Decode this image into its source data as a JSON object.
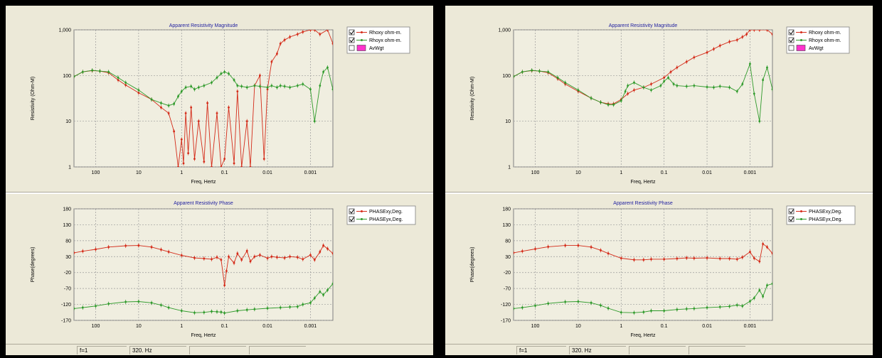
{
  "colors": {
    "panel_bg": "#ece9d8",
    "plot_bg": "#f0eee0",
    "xy_series": "#d42a18",
    "yx_series": "#2e9a2a",
    "title_color": "#1f1fa0",
    "weight_swatch": "#ff33cc"
  },
  "status": {
    "field1": "f=1",
    "field2": "320. Hz"
  },
  "chart_data": [
    {
      "panel": "left",
      "type": "line",
      "title": "Apparent Resistivity Magnitude",
      "xlabel": "Freq, Hertz",
      "ylabel": "Resistivity (Ohm-M)",
      "x_scale": "log",
      "x_reversed": true,
      "y_scale": "log",
      "ylim": [
        1,
        1000
      ],
      "xlim": [
        320,
        0.0003
      ],
      "x_ticks": [
        "100",
        "10",
        "1",
        "0.1",
        "0.01",
        "0.001"
      ],
      "y_ticks": [
        "1,000",
        "100",
        "10",
        "1"
      ],
      "grid": true,
      "legend_position": "top-right",
      "legend": [
        {
          "label": "Rhoxy ohm-m.",
          "checked": true,
          "color": "#d42a18"
        },
        {
          "label": "Rhoyx ohm-m.",
          "checked": true,
          "color": "#2e9a2a"
        },
        {
          "label": "AvWgt",
          "checked": false,
          "color": "#ff33cc"
        }
      ],
      "series": [
        {
          "name": "Rhoxy ohm-m.",
          "x": [
            320,
            200,
            120,
            80,
            50,
            30,
            20,
            10,
            5,
            3,
            2,
            1.5,
            1.2,
            1,
            0.9,
            0.8,
            0.7,
            0.6,
            0.5,
            0.4,
            0.3,
            0.25,
            0.2,
            0.15,
            0.12,
            0.1,
            0.08,
            0.06,
            0.05,
            0.04,
            0.03,
            0.025,
            0.02,
            0.015,
            0.012,
            0.01,
            0.008,
            0.006,
            0.005,
            0.004,
            0.003,
            0.002,
            0.0015,
            0.001,
            0.0008,
            0.0006,
            0.0004,
            0.0003
          ],
          "y": [
            95,
            120,
            128,
            125,
            115,
            80,
            62,
            42,
            30,
            20,
            15,
            6,
            1,
            4,
            1.2,
            15,
            2,
            20,
            1.5,
            10,
            1.3,
            25,
            1,
            15,
            1,
            1.5,
            20,
            1.2,
            45,
            1,
            10,
            1,
            60,
            100,
            1.5,
            50,
            200,
            300,
            500,
            600,
            700,
            800,
            900,
            1000,
            1000,
            800,
            1000,
            500
          ]
        },
        {
          "name": "Rhoyx ohm-m.",
          "x": [
            320,
            200,
            120,
            80,
            50,
            30,
            20,
            10,
            5,
            3,
            2,
            1.5,
            1.2,
            1,
            0.8,
            0.6,
            0.5,
            0.4,
            0.3,
            0.2,
            0.15,
            0.12,
            0.1,
            0.08,
            0.06,
            0.05,
            0.04,
            0.03,
            0.02,
            0.015,
            0.01,
            0.008,
            0.006,
            0.005,
            0.004,
            0.003,
            0.002,
            0.0015,
            0.001,
            0.0008,
            0.0006,
            0.0005,
            0.0004,
            0.0003
          ],
          "y": [
            95,
            120,
            130,
            125,
            120,
            90,
            70,
            48,
            30,
            25,
            22,
            24,
            35,
            45,
            55,
            58,
            50,
            55,
            60,
            70,
            90,
            110,
            120,
            110,
            80,
            60,
            58,
            55,
            60,
            58,
            55,
            60,
            55,
            60,
            58,
            55,
            60,
            65,
            50,
            10,
            60,
            120,
            150,
            50
          ]
        }
      ]
    },
    {
      "panel": "left",
      "type": "line",
      "title": "Apparent Resistivity Phase",
      "xlabel": "Freq, Hertz",
      "ylabel": "Phase(degrees)",
      "x_scale": "log",
      "x_reversed": true,
      "ylim": [
        -170,
        180
      ],
      "xlim": [
        320,
        0.0003
      ],
      "x_ticks": [
        "100",
        "10",
        "1",
        "0.1",
        "0.01",
        "0.001"
      ],
      "y_ticks": [
        "180",
        "130",
        "80",
        "30",
        "-20",
        "-70",
        "-120",
        "-170"
      ],
      "grid": true,
      "legend_position": "top-right",
      "legend": [
        {
          "label": "PHASExy,Deg.",
          "checked": true,
          "color": "#d42a18"
        },
        {
          "label": "PHASEyx,Deg.",
          "checked": true,
          "color": "#2e9a2a"
        }
      ],
      "series": [
        {
          "name": "PHASExy,Deg.",
          "x": [
            320,
            200,
            100,
            50,
            20,
            10,
            5,
            3,
            2,
            1,
            0.5,
            0.3,
            0.2,
            0.15,
            0.12,
            0.1,
            0.09,
            0.08,
            0.06,
            0.05,
            0.04,
            0.03,
            0.025,
            0.02,
            0.015,
            0.01,
            0.008,
            0.006,
            0.004,
            0.003,
            0.002,
            0.0015,
            0.001,
            0.0008,
            0.0006,
            0.0005,
            0.0004,
            0.0003
          ],
          "y": [
            42,
            47,
            53,
            60,
            64,
            65,
            60,
            52,
            45,
            34,
            26,
            24,
            22,
            28,
            20,
            -60,
            -15,
            30,
            10,
            40,
            20,
            48,
            15,
            30,
            35,
            25,
            30,
            28,
            26,
            30,
            28,
            22,
            35,
            20,
            45,
            65,
            55,
            40
          ]
        },
        {
          "name": "PHASEyx,Deg.",
          "x": [
            320,
            200,
            100,
            50,
            20,
            10,
            5,
            3,
            2,
            1,
            0.5,
            0.3,
            0.2,
            0.15,
            0.12,
            0.1,
            0.05,
            0.03,
            0.02,
            0.01,
            0.005,
            0.003,
            0.002,
            0.0015,
            0.001,
            0.0008,
            0.0006,
            0.0005,
            0.0004,
            0.0003
          ],
          "y": [
            -133,
            -130,
            -125,
            -118,
            -112,
            -111,
            -115,
            -122,
            -130,
            -140,
            -146,
            -145,
            -142,
            -143,
            -144,
            -147,
            -140,
            -137,
            -135,
            -132,
            -130,
            -128,
            -127,
            -120,
            -115,
            -100,
            -80,
            -90,
            -75,
            -55
          ]
        }
      ]
    },
    {
      "panel": "right",
      "type": "line",
      "title": "Apparent Resistivity Magnitude",
      "xlabel": "Freq, Hertz",
      "ylabel": "Resistivity (Ohm-M)",
      "x_scale": "log",
      "x_reversed": true,
      "y_scale": "log",
      "ylim": [
        1,
        1000
      ],
      "xlim": [
        320,
        0.0003
      ],
      "x_ticks": [
        "100",
        "10",
        "1",
        "0.1",
        "0.01",
        "0.001"
      ],
      "y_ticks": [
        "1,000",
        "100",
        "10",
        "1"
      ],
      "grid": true,
      "legend_position": "top-right",
      "legend": [
        {
          "label": "Rhoxy ohm-m.",
          "checked": true,
          "color": "#d42a18"
        },
        {
          "label": "Rhoyx ohm-m.",
          "checked": true,
          "color": "#2e9a2a"
        },
        {
          "label": "AvWgt",
          "checked": false,
          "color": "#ff33cc"
        }
      ],
      "series": [
        {
          "name": "Rhoxy ohm-m.",
          "x": [
            320,
            200,
            120,
            80,
            50,
            30,
            20,
            10,
            5,
            3,
            2,
            1.5,
            1,
            0.7,
            0.5,
            0.3,
            0.2,
            0.1,
            0.07,
            0.05,
            0.03,
            0.02,
            0.01,
            0.007,
            0.005,
            0.003,
            0.002,
            0.0015,
            0.0012,
            0.001,
            0.0008,
            0.0006,
            0.0004,
            0.0003
          ],
          "y": [
            95,
            120,
            128,
            125,
            115,
            85,
            65,
            45,
            32,
            26,
            24,
            24,
            30,
            40,
            48,
            55,
            65,
            90,
            120,
            150,
            200,
            250,
            320,
            380,
            450,
            550,
            600,
            700,
            800,
            1000,
            1000,
            1000,
            1000,
            800
          ]
        },
        {
          "name": "Rhoyx ohm-m.",
          "x": [
            320,
            200,
            120,
            80,
            50,
            30,
            20,
            10,
            5,
            3,
            2,
            1.5,
            1,
            0.8,
            0.7,
            0.5,
            0.3,
            0.2,
            0.12,
            0.1,
            0.08,
            0.06,
            0.05,
            0.03,
            0.02,
            0.01,
            0.007,
            0.005,
            0.003,
            0.002,
            0.0015,
            0.001,
            0.0008,
            0.0006,
            0.0005,
            0.0004,
            0.0003
          ],
          "y": [
            95,
            120,
            130,
            125,
            120,
            90,
            70,
            48,
            32,
            26,
            23,
            23,
            28,
            45,
            60,
            70,
            55,
            48,
            60,
            75,
            90,
            65,
            60,
            58,
            60,
            56,
            55,
            58,
            55,
            45,
            65,
            180,
            40,
            10,
            80,
            150,
            50
          ]
        }
      ]
    },
    {
      "panel": "right",
      "type": "line",
      "title": "Apparent Resistivity Phase",
      "xlabel": "Freq, Hertz",
      "ylabel": "Phase(degrees)",
      "x_scale": "log",
      "x_reversed": true,
      "ylim": [
        -170,
        180
      ],
      "xlim": [
        320,
        0.0003
      ],
      "x_ticks": [
        "100",
        "10",
        "1",
        "0.1",
        "0.01",
        "0.001"
      ],
      "y_ticks": [
        "180",
        "130",
        "80",
        "30",
        "-20",
        "-70",
        "-120",
        "-170"
      ],
      "grid": true,
      "legend_position": "top-right",
      "legend": [
        {
          "label": "PHASExy,Deg.",
          "checked": true,
          "color": "#d42a18"
        },
        {
          "label": "PHASEyx,Deg.",
          "checked": true,
          "color": "#2e9a2a"
        }
      ],
      "series": [
        {
          "name": "PHASExy,Deg.",
          "x": [
            320,
            200,
            100,
            50,
            20,
            10,
            5,
            3,
            2,
            1,
            0.5,
            0.3,
            0.2,
            0.1,
            0.05,
            0.03,
            0.02,
            0.01,
            0.005,
            0.003,
            0.002,
            0.0015,
            0.001,
            0.0008,
            0.0006,
            0.0005,
            0.0004,
            0.0003
          ],
          "y": [
            42,
            47,
            54,
            61,
            65,
            65,
            60,
            50,
            40,
            25,
            20,
            20,
            22,
            22,
            24,
            26,
            25,
            26,
            24,
            24,
            22,
            28,
            45,
            25,
            15,
            70,
            60,
            40
          ]
        },
        {
          "name": "PHASEyx,Deg.",
          "x": [
            320,
            200,
            100,
            50,
            20,
            10,
            5,
            3,
            2,
            1,
            0.5,
            0.3,
            0.2,
            0.1,
            0.05,
            0.03,
            0.02,
            0.01,
            0.005,
            0.003,
            0.002,
            0.0015,
            0.001,
            0.0008,
            0.0006,
            0.0005,
            0.0004,
            0.0003
          ],
          "y": [
            -133,
            -130,
            -124,
            -117,
            -112,
            -111,
            -115,
            -123,
            -132,
            -145,
            -146,
            -144,
            -140,
            -140,
            -136,
            -134,
            -133,
            -130,
            -128,
            -126,
            -122,
            -125,
            -110,
            -100,
            -75,
            -95,
            -60,
            -55
          ]
        }
      ]
    }
  ]
}
